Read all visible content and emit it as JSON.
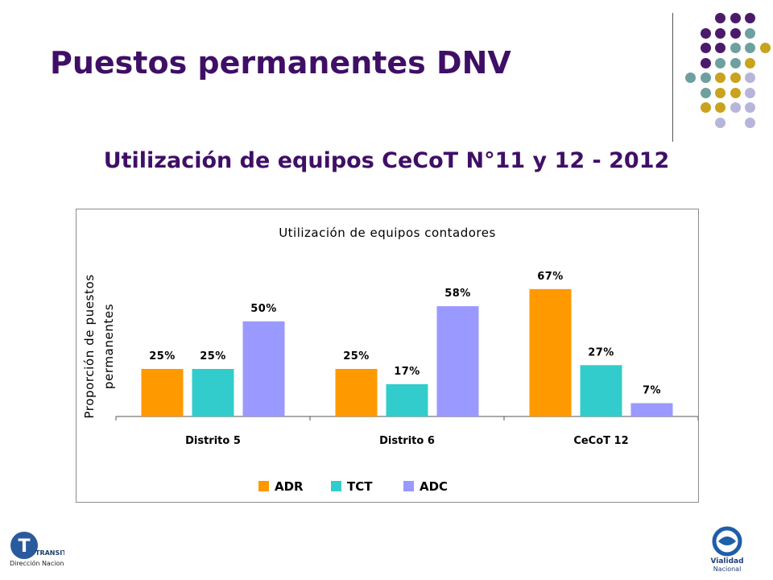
{
  "slide": {
    "title": "Puestos permanentes DNV",
    "subtitle": "Utilización de equipos CeCoT N°11 y 12 - 2012"
  },
  "decoration": {
    "dot_colors": {
      "purple": "#4b1a6b",
      "teal": "#6fa0a0",
      "gold": "#c9a21e",
      "lavender": "#b7b5d9"
    }
  },
  "logos": {
    "left_mark": "T",
    "left_word": "TRANSITO",
    "left_caption": "Dirección Nacional de Vialidad",
    "right_line1": "Vialidad",
    "right_line2": "Nacional"
  },
  "chart_data": {
    "type": "bar",
    "title": "Utilización de equipos contadores",
    "ylabel": "Proporción de puestos permanentes",
    "ylabel_lines": [
      "Proporción de puestos",
      "permanentes"
    ],
    "xlabel": "",
    "categories": [
      "Distrito 5",
      "Distrito 6",
      "CeCoT 12"
    ],
    "ylim": [
      0,
      75
    ],
    "grid": false,
    "legend_position": "bottom",
    "value_suffix": "%",
    "series": [
      {
        "name": "ADR",
        "color": "#ff9900",
        "values": [
          25,
          25,
          67
        ]
      },
      {
        "name": "TCT",
        "color": "#33cccc",
        "values": [
          25,
          17,
          27
        ]
      },
      {
        "name": "ADC",
        "color": "#9999ff",
        "values": [
          50,
          58,
          7
        ]
      }
    ]
  }
}
